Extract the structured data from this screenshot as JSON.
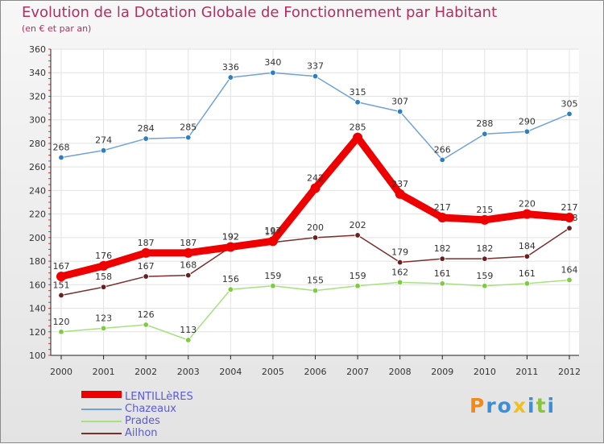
{
  "chart_data": {
    "type": "line",
    "title": "Evolution de la Dotation Globale de Fonctionnement par Habitant",
    "subtitle": "(en € et par an)",
    "x": [
      2000,
      2001,
      2002,
      2003,
      2004,
      2005,
      2006,
      2007,
      2008,
      2009,
      2010,
      2011,
      2012
    ],
    "ylim": [
      100,
      360
    ],
    "yticks": [
      100,
      120,
      140,
      160,
      180,
      200,
      220,
      240,
      260,
      280,
      300,
      320,
      340,
      360
    ],
    "grid": true,
    "legend_position": "bottom-left",
    "series": [
      {
        "name": "Chazeaux",
        "color": "#6fa2d8",
        "marker_color": "#2f7ec0",
        "values": [
          268,
          274,
          284,
          285,
          336,
          340,
          337,
          315,
          307,
          266,
          288,
          290,
          305
        ]
      },
      {
        "name": "Prades",
        "color": "#a8e080",
        "marker_color": "#7ccc40",
        "values": [
          120,
          123,
          126,
          113,
          156,
          159,
          155,
          159,
          162,
          161,
          159,
          161,
          164
        ]
      },
      {
        "name": "Ailhon",
        "color": "#7a2e2e",
        "marker_color": "#6a1e1e",
        "values": [
          151,
          158,
          167,
          168,
          192,
          196,
          200,
          202,
          179,
          182,
          182,
          184,
          208
        ]
      },
      {
        "name": "LENTILLèRES",
        "color": "#ee0000",
        "marker_color": "#ee0000",
        "values": [
          167,
          176,
          187,
          187,
          192,
          197,
          242,
          285,
          237,
          217,
          215,
          220,
          217
        ]
      }
    ]
  },
  "legend": [
    {
      "label": "LENTILLèRES",
      "color": "#ee0000"
    },
    {
      "label": "Chazeaux",
      "color": "#6fa2d8"
    },
    {
      "label": "Prades",
      "color": "#a8e080"
    },
    {
      "label": "Ailhon",
      "color": "#7a2e2e"
    }
  ],
  "logo": {
    "letters": [
      "P",
      "r",
      "o",
      "x",
      "i",
      "t",
      "i"
    ]
  }
}
